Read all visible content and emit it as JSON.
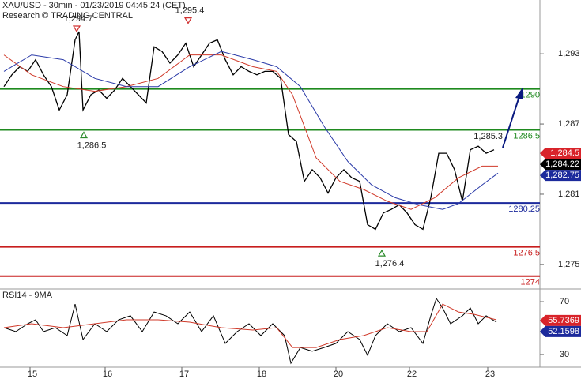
{
  "chart_data": {
    "type": "line",
    "title": "XAU/USD - 30min - 01/23/2019 04:45:24 (CET)",
    "subtitle": "Research © TRADING CENTRAL",
    "xlim": [
      0,
      683
    ],
    "xticks": [
      {
        "value": 38,
        "label": "15"
      },
      {
        "value": 133,
        "label": "16"
      },
      {
        "value": 230,
        "label": "17"
      },
      {
        "value": 328,
        "label": "18"
      },
      {
        "value": 425,
        "label": "20"
      },
      {
        "value": 518,
        "label": "22"
      },
      {
        "value": 617,
        "label": "23"
      }
    ],
    "ylim": [
      1272.9,
      1297.6
    ],
    "yticks": [
      {
        "value": 1293,
        "label": "1,293"
      },
      {
        "value": 1287,
        "label": "1,287"
      },
      {
        "value": 1281,
        "label": "1,281"
      },
      {
        "value": 1275,
        "label": "1,275"
      }
    ],
    "series": [
      {
        "color": "#000000",
        "x": [
          5,
          15,
          25,
          35,
          45,
          55,
          65,
          75,
          85,
          95,
          100,
          105,
          115,
          125,
          135,
          145,
          155,
          165,
          175,
          185,
          195,
          205,
          215,
          225,
          235,
          245,
          255,
          265,
          275,
          285,
          295,
          305,
          315,
          325,
          335,
          345,
          355,
          365,
          375,
          385,
          395,
          405,
          415,
          425,
          435,
          445,
          455,
          465,
          475,
          485,
          495,
          505,
          515,
          525,
          535,
          545,
          555,
          565,
          575,
          585,
          595,
          605,
          615,
          625
        ],
        "values": [
          1290.2,
          1291.2,
          1291.9,
          1291.5,
          1292.5,
          1291.2,
          1290.2,
          1288.2,
          1289.5,
          1294.2,
          1294.9,
          1288.2,
          1289.5,
          1289.9,
          1289.2,
          1289.9,
          1290.9,
          1290.2,
          1289.5,
          1288.8,
          1293.6,
          1293.2,
          1292.2,
          1292.9,
          1293.9,
          1291.9,
          1292.9,
          1293.9,
          1294.2,
          1292.5,
          1291.2,
          1291.9,
          1291.5,
          1291.2,
          1291.5,
          1291.5,
          1290.9,
          1286.1,
          1285.5,
          1282.1,
          1283.1,
          1282.4,
          1281.1,
          1282.4,
          1283.1,
          1282.4,
          1282.1,
          1278.4,
          1278.0,
          1279.4,
          1279.7,
          1280.1,
          1279.4,
          1278.4,
          1278.0,
          1280.7,
          1284.5,
          1284.5,
          1283.1,
          1280.4,
          1284.8,
          1285.1,
          1284.5,
          1284.8
        ]
      },
      {
        "color": "#d03a2a",
        "x": [
          5,
          40,
          80,
          120,
          160,
          200,
          240,
          280,
          320,
          350,
          370,
          400,
          430,
          460,
          490,
          520,
          550,
          580,
          610,
          630
        ],
        "values": [
          1292.9,
          1291.2,
          1290.2,
          1289.8,
          1290.2,
          1290.9,
          1292.9,
          1292.9,
          1291.9,
          1291.5,
          1289.5,
          1284.1,
          1282.1,
          1281.4,
          1280.4,
          1279.7,
          1280.7,
          1282.4,
          1283.4,
          1283.4
        ]
      },
      {
        "color": "#2a3aa8",
        "x": [
          5,
          40,
          80,
          120,
          160,
          200,
          240,
          280,
          320,
          350,
          380,
          410,
          440,
          470,
          500,
          530,
          560,
          580,
          610,
          630
        ],
        "values": [
          1291.5,
          1292.9,
          1292.5,
          1290.9,
          1290.2,
          1290.2,
          1291.9,
          1293.2,
          1292.5,
          1291.9,
          1290.2,
          1286.8,
          1283.8,
          1281.8,
          1280.7,
          1280.1,
          1279.7,
          1280.2,
          1281.8,
          1282.8
        ]
      }
    ],
    "levels": [
      {
        "value": 1290,
        "color": "#1f8a1f"
      },
      {
        "value": 1286.5,
        "color": "#1f8a1f"
      },
      {
        "value": 1280.25,
        "color": "#1c2a9c"
      },
      {
        "value": 1276.5,
        "color": "#c81e1e"
      },
      {
        "value": 1274,
        "color": "#c81e1e"
      }
    ],
    "annotations": [
      {
        "text": "1,294.7",
        "x": 97,
        "y": 1294.7,
        "marker": "down"
      },
      {
        "text": "1,295.4",
        "x": 238,
        "y": 1295.4,
        "marker": "down"
      },
      {
        "text": "1,286.5",
        "x": 106,
        "y": 1286.5,
        "marker": "up"
      },
      {
        "text": "1,276.4",
        "x": 483,
        "y": 1276.4,
        "marker": "up"
      },
      {
        "text": "1,285.3",
        "x": 640,
        "y": 1285.3
      }
    ],
    "tags": [
      {
        "value": 1284.5,
        "label": "1,284.5",
        "color": "#d8232a"
      },
      {
        "value": 1284.22,
        "label": "1,284.22",
        "color": "#000000"
      },
      {
        "value": 1282.75,
        "label": "1,282.75",
        "color": "#1c2a9c"
      }
    ],
    "rsi": {
      "title": "RSI14 - 9MA",
      "ylim": [
        20.4,
        79.6
      ],
      "yticks": [
        70,
        30
      ],
      "series": [
        {
          "color": "#000000",
          "x": [
            5,
            20,
            35,
            45,
            55,
            70,
            85,
            95,
            105,
            120,
            135,
            150,
            165,
            180,
            195,
            210,
            225,
            240,
            255,
            270,
            285,
            300,
            315,
            330,
            345,
            360,
            368,
            380,
            395,
            410,
            425,
            440,
            455,
            465,
            475,
            490,
            505,
            520,
            535,
            545,
            552,
            560,
            570,
            585,
            595,
            605,
            615,
            628
          ],
          "values": [
            50.3,
            47.3,
            53.3,
            56.3,
            47.3,
            50.3,
            44.3,
            68.2,
            41.3,
            53.3,
            47.3,
            56.3,
            59.3,
            47.3,
            62.2,
            59.3,
            53.3,
            62.2,
            47.3,
            59.3,
            38.4,
            47.3,
            53.3,
            44.3,
            53.3,
            44.3,
            23.4,
            35.3,
            32.4,
            35.3,
            38.4,
            47.3,
            41.3,
            29.4,
            44.3,
            53.3,
            47.3,
            50.3,
            38.4,
            59.3,
            72.4,
            65.2,
            53.3,
            59.3,
            65.2,
            53.3,
            59.3,
            54.5
          ]
        },
        {
          "color": "#d03a2a",
          "x": [
            5,
            40,
            80,
            120,
            160,
            200,
            240,
            280,
            320,
            350,
            370,
            400,
            430,
            460,
            490,
            520,
            540,
            560,
            580,
            600,
            628
          ],
          "values": [
            50.3,
            53.3,
            50.3,
            53.3,
            56.3,
            56.3,
            54.5,
            50.3,
            48.5,
            50.3,
            35.3,
            35.3,
            41.3,
            44.3,
            50.3,
            47.3,
            47.3,
            68.2,
            62.2,
            60.4,
            56.3
          ]
        }
      ],
      "tags": [
        {
          "value": 55.7369,
          "color": "#d8232a"
        },
        {
          "value": 52.1598,
          "color": "#1c2a9c"
        }
      ]
    }
  }
}
